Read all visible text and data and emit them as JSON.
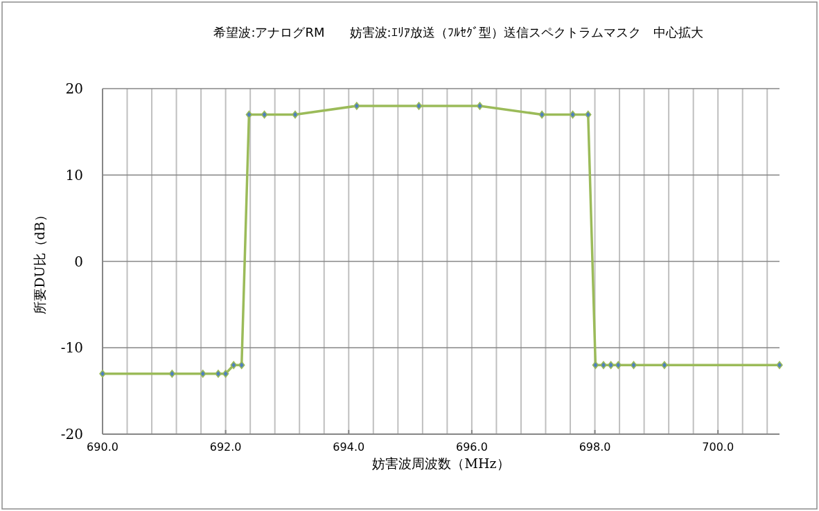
{
  "chart_data": {
    "type": "line",
    "title": "希望波:アナログRM　　妨害波:ｴﾘｱ放送（ﾌﾙｾｸﾞ型）送信スペクトラムマスク　中心拡大",
    "xlabel": "妨害波周波数（MHz）",
    "ylabel": "所要DU比（dB）",
    "x": [
      690,
      691.13,
      691.63,
      691.88,
      692.0,
      692.13,
      692.26,
      692.38,
      692.63,
      693.13,
      694.13,
      695.14,
      696.13,
      697.14,
      697.64,
      697.89,
      698.01,
      698.14,
      698.26,
      698.38,
      698.63,
      699.13,
      701
    ],
    "series": [
      {
        "color": "#9bbb59",
        "values": [
          -13,
          -13,
          -13,
          -13,
          -13,
          -12,
          -12,
          17,
          17,
          17,
          18,
          18,
          18,
          17,
          17,
          17,
          -12,
          -12,
          -12,
          -12,
          -12,
          -12,
          -12
        ]
      }
    ],
    "xlim": [
      690,
      701
    ],
    "xticks": [
      {
        "value": 690,
        "label": "690.0"
      },
      {
        "value": 690.4,
        "label": null
      },
      {
        "value": 690.8,
        "label": null
      },
      {
        "value": 691.2,
        "label": null
      },
      {
        "value": 691.6,
        "label": null
      },
      {
        "value": 692,
        "label": "692.0"
      },
      {
        "value": 692.4,
        "label": null
      },
      {
        "value": 692.8,
        "label": null
      },
      {
        "value": 693.2,
        "label": null
      },
      {
        "value": 693.6,
        "label": null
      },
      {
        "value": 694,
        "label": "694.0"
      },
      {
        "value": 694.4,
        "label": null
      },
      {
        "value": 694.8,
        "label": null
      },
      {
        "value": 695.2,
        "label": null
      },
      {
        "value": 695.6,
        "label": null
      },
      {
        "value": 696,
        "label": "696.0"
      },
      {
        "value": 696.4,
        "label": null
      },
      {
        "value": 696.8,
        "label": null
      },
      {
        "value": 697.2,
        "label": null
      },
      {
        "value": 697.6,
        "label": null
      },
      {
        "value": 698,
        "label": "698.0"
      },
      {
        "value": 698.4,
        "label": null
      },
      {
        "value": 698.8,
        "label": null
      },
      {
        "value": 699.2,
        "label": null
      },
      {
        "value": 699.6,
        "label": null
      },
      {
        "value": 700,
        "label": "700.0"
      },
      {
        "value": 700.4,
        "label": null
      },
      {
        "value": 700.8,
        "label": null
      }
    ],
    "ylim": [
      -20,
      20
    ],
    "yticks": [
      -20,
      -10,
      0,
      10,
      20
    ],
    "grid": true,
    "marker": "diamond",
    "line_style": "solid"
  }
}
